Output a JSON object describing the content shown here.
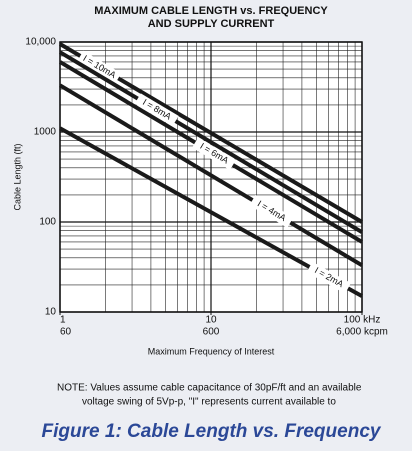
{
  "chart_data": {
    "type": "line",
    "title": [
      "MAXIMUM CABLE LENGTH vs. FREQUENCY",
      "AND SUPPLY CURRENT"
    ],
    "x_label": "Maximum Frequency of Interest",
    "y_label": "Cable Length (ft)",
    "log_x": true,
    "log_y": true,
    "grid": true,
    "xlim": [
      1,
      100
    ],
    "xticks": [
      1,
      10,
      {
        "value": 100,
        "label": "100 kHz"
      }
    ],
    "x2lim": [
      60,
      6000
    ],
    "x2ticks": [
      60,
      600,
      {
        "value": 6000,
        "label": "6,000 kcpm"
      }
    ],
    "ylim": [
      10,
      10000
    ],
    "yticks": [
      10,
      100,
      1000,
      {
        "value": 10000,
        "label": "10,000"
      }
    ],
    "x": [
      1,
      100
    ],
    "series": [
      {
        "name": "I = 10mA",
        "color": "#1a1a1a",
        "values": [
          9500,
          100
        ]
      },
      {
        "name": "I = 8mA",
        "color": "#1a1a1a",
        "values": [
          7700,
          77
        ]
      },
      {
        "name": "I = 6mA",
        "color": "#1a1a1a",
        "values": [
          6000,
          60
        ]
      },
      {
        "name": "I = 4mA",
        "color": "#1a1a1a",
        "values": [
          3300,
          33
        ]
      },
      {
        "name": "I = 2mA",
        "color": "#1a1a1a",
        "values": [
          1100,
          15
        ]
      }
    ],
    "note": [
      "NOTE: Values assume cable capacitance of 30pF/ft and an available",
      "voltage swing of 5Vp-p, \"I\" represents current available to"
    ],
    "caption": "Figure 1: Cable Length vs. Frequency"
  }
}
